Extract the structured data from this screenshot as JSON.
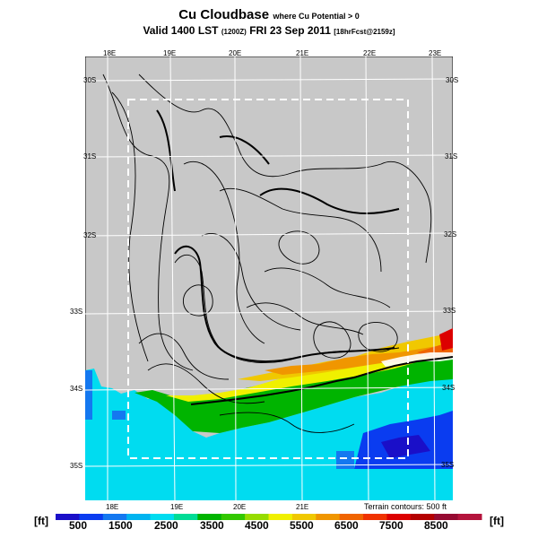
{
  "header": {
    "title": "Cu Cloudbase",
    "title_note": "where Cu Potential > 0",
    "valid_prefix": "Valid 1400 LST",
    "valid_z": "(1200Z)",
    "valid_date": "FRI 23 Sep 2011",
    "forecast_note": "[18hrFcst@2159z]"
  },
  "map": {
    "lon_labels_top": [
      "18E",
      "19E",
      "20E",
      "21E",
      "22E",
      "23E"
    ],
    "lon_labels_bottom": [
      "18E",
      "19E",
      "20E",
      "21E"
    ],
    "lat_labels_left": [
      "30S",
      "31S",
      "32S",
      "33S",
      "34S",
      "35S"
    ],
    "lat_labels_right": [
      "30S",
      "31S",
      "32S",
      "33S",
      "34S",
      "35S"
    ],
    "background_color": "#c8c8c8",
    "ocean_color": "#00dcf0"
  },
  "legend": {
    "unit_left": "[ft]",
    "unit_right": "[ft]",
    "terrain_note": "Terrain contours: 500 ft",
    "tick_labels": [
      "500",
      "1500",
      "2500",
      "3500",
      "4500",
      "5500",
      "6500",
      "7500",
      "8500"
    ],
    "colors": [
      "#1a0fc8",
      "#0a3cf0",
      "#1478f0",
      "#00b4f0",
      "#00dcf0",
      "#00dc96",
      "#00b400",
      "#32c800",
      "#96dc00",
      "#f0f000",
      "#f0c800",
      "#f09600",
      "#f06400",
      "#f03200",
      "#dc0000",
      "#b40000",
      "#960a32",
      "#b4143c"
    ]
  }
}
